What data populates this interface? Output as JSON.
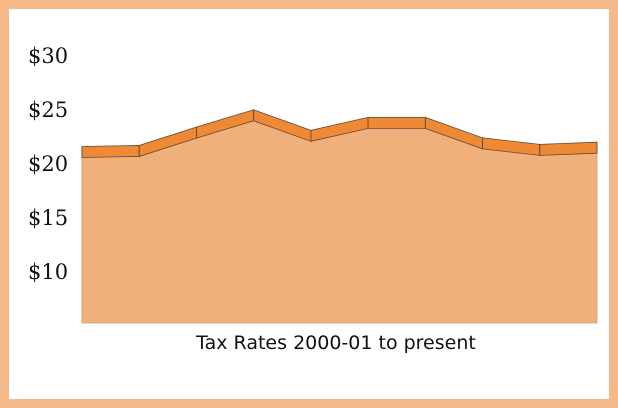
{
  "chart_data": {
    "type": "area",
    "title": "",
    "xlabel": "Tax Rates 2000-01 to present",
    "ylabel": "",
    "ylim": [
      5,
      32
    ],
    "yticks": [
      30,
      25,
      20,
      15,
      10
    ],
    "ytick_labels": [
      "$30",
      "$25",
      "$20",
      "$15",
      "$10"
    ],
    "grid": false,
    "legend": false,
    "x": [
      1,
      2,
      3,
      4,
      5,
      6,
      7,
      8,
      9,
      10
    ],
    "series": [
      {
        "name": "",
        "values": [
          20.6,
          20.7,
          22.4,
          24.0,
          22.1,
          23.3,
          23.3,
          21.4,
          20.8,
          21.0
        ]
      }
    ],
    "colors": {
      "area_fill": "#f0b07c",
      "top_band": "#ee8a35",
      "band_edge": "#6b4a30",
      "frame": "#f6b98a",
      "axis_text": "#111111"
    }
  }
}
